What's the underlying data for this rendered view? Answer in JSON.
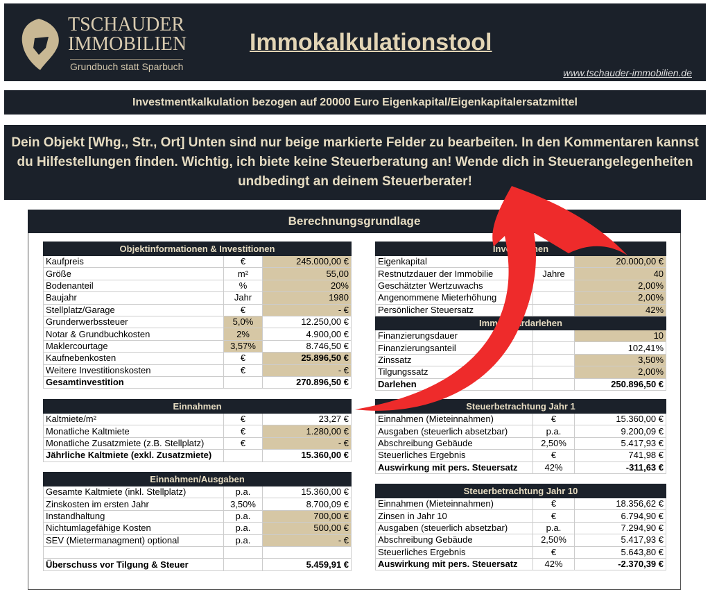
{
  "header": {
    "logo_line1": "TSCHAUDER",
    "logo_line2": "IMMOBILIEN",
    "logo_tagline": "Grundbuch statt Sparbuch",
    "title": "Immokalkulationstool",
    "url": "www.tschauder-immobilien.de"
  },
  "banner": "Investmentkalkulation bezogen auf 20000 Euro Eigenkapital/Eigenkapitalersatzmittel",
  "notice": "Dein Objekt [Whg., Str., Ort]   Unten sind nur beige markierte Felder zu bearbeiten. In den Kommentaren kannst du Hilfestellungen finden. Wichtig, ich biete keine Steuerberatung an! Wende dich in Steuerangelegenheiten undbedingt an deinem Steuerberater!",
  "panel_title": "Berechnungsgrundlage",
  "colors": {
    "dark": "#1b212a",
    "beige": "#d6c7a5",
    "gold": "#e3d5b5",
    "arrow": "#ee2b2b"
  },
  "tables": [
    {
      "title": "Objektinformationen & Investitionen",
      "rows": [
        [
          "Kaufpreis",
          "€",
          "245.000,00 €",
          "v"
        ],
        [
          "Größe",
          "m²",
          "55,00",
          "v"
        ],
        [
          "Bodenanteil",
          "%",
          "20%",
          "v"
        ],
        [
          "Baujahr",
          "Jahr",
          "1980",
          "v"
        ],
        [
          "Stellplatz/Garage",
          "€",
          "-    €",
          "v"
        ],
        [
          "Grunderwerbssteuer",
          "5,0%",
          "12.250,00 €",
          "u"
        ],
        [
          "Notar & Grundbuchkosten",
          "2%",
          "4.900,00 €",
          "u"
        ],
        [
          "Maklercourtage",
          "3,57%",
          "8.746,50 €",
          "u"
        ],
        [
          "Kaufnebenkosten",
          "€",
          "25.896,50 €",
          "bv"
        ],
        [
          "Weitere Investitionskosten",
          "€",
          "-    €",
          "v"
        ],
        [
          "Gesamtinvestition",
          "",
          "270.896,50 €",
          "b"
        ]
      ]
    },
    {
      "title": "Einnahmen",
      "rows": [
        [
          "Kaltmiete/m²",
          "€",
          "23,27 €",
          ""
        ],
        [
          "Monatliche Kaltmiete",
          "€",
          "1.280,00 €",
          "v"
        ],
        [
          "Monatliche Zusatzmiete (z.B. Stellplatz)",
          "€",
          "-    €",
          "v"
        ],
        [
          "Jährliche Kaltmiete (exkl. Zusatzmiete)",
          "",
          "15.360,00 €",
          "b"
        ]
      ]
    },
    {
      "title": "Einnahmen/Ausgaben",
      "rows": [
        [
          "Gesamte Kaltmiete (inkl. Stellplatz)",
          "p.a.",
          "15.360,00 €",
          ""
        ],
        [
          "Zinskosten im ersten Jahr",
          "3,50%",
          "8.700,09 €",
          ""
        ],
        [
          "Instandhaltung",
          "p.a.",
          "700,00 €",
          "v"
        ],
        [
          "Nichtumlagefähige Kosten",
          "p.a.",
          "500,00 €",
          "v"
        ],
        [
          "SEV (Mietermanagment) optional",
          "p.a.",
          "-    €",
          "v"
        ],
        [
          "",
          "",
          "",
          ""
        ],
        [
          "Überschuss vor Tilgung & Steuer",
          "",
          "5.459,91 €",
          "b"
        ]
      ]
    },
    {
      "title": "Investitionen",
      "rows": [
        [
          "Eigenkapital",
          "",
          "20.000,00 €",
          "v"
        ],
        [
          "Restnutzdauer der Immobilie",
          "Jahre",
          "40",
          "v"
        ],
        [
          "Geschätzter Wertzuwachs",
          "",
          "2,00%",
          "v"
        ],
        [
          "Angenommene Mieterhöhung",
          "",
          "2,00%",
          "v"
        ],
        [
          "Persönlicher Steuersatz",
          "",
          "42%",
          "v"
        ]
      ],
      "subtitle": "Immobiliardarlehen",
      "subrows": [
        [
          "Finanzierungsdauer",
          "",
          "10",
          "v"
        ],
        [
          "Finanzierungsanteil",
          "",
          "102,41%",
          ""
        ],
        [
          "Zinssatz",
          "",
          "3,50%",
          "v"
        ],
        [
          "Tilgungssatz",
          "",
          "2,00%",
          "v"
        ],
        [
          "Darlehen",
          "",
          "250.896,50 €",
          "b"
        ]
      ]
    },
    {
      "title": "Steuerbetrachtung Jahr 1",
      "rows": [
        [
          "Einnahmen (Mieteinnahmen)",
          "€",
          "15.360,00 €",
          ""
        ],
        [
          "Ausgaben (steuerlich absetzbar)",
          "p.a.",
          "9.200,09 €",
          ""
        ],
        [
          "Abschreibung Gebäude",
          "2,50%",
          "5.417,93 €",
          ""
        ],
        [
          "Steuerliches Ergebnis",
          "€",
          "741,98 €",
          ""
        ],
        [
          "Auswirkung mit pers. Steuersatz",
          "42%",
          "-311,63 €",
          "b"
        ]
      ]
    },
    {
      "title": "Steuerbetrachtung Jahr 10",
      "rows": [
        [
          "Einnahmen (Mieteinnahmen)",
          "€",
          "18.356,62 €",
          ""
        ],
        [
          "Zinsen in Jahr 10",
          "€",
          "6.794,90 €",
          ""
        ],
        [
          "Ausgaben (steuerlich absetzbar)",
          "p.a.",
          "7.294,90 €",
          ""
        ],
        [
          "Abschreibung Gebäude",
          "2,50%",
          "5.417,93 €",
          ""
        ],
        [
          "Steuerliches Ergebnis",
          "€",
          "5.643,80 €",
          ""
        ],
        [
          "Auswirkung mit pers. Steuersatz",
          "42%",
          "-2.370,39 €",
          "b"
        ]
      ]
    }
  ]
}
